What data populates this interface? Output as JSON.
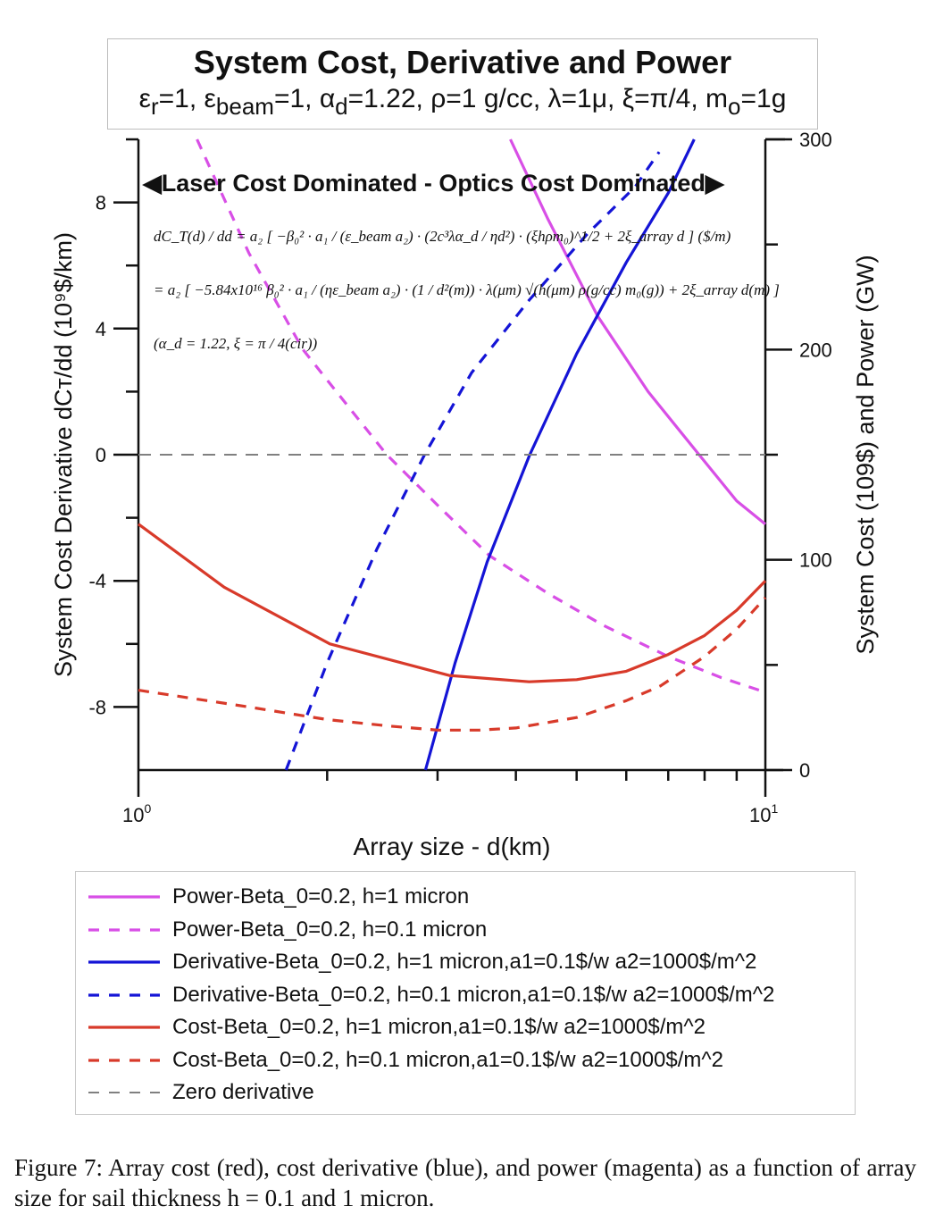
{
  "figure": {
    "title": "System Cost, Derivative and Power",
    "subtitle_parts": [
      {
        "t": "ε"
      },
      {
        "s": "r"
      },
      {
        "t": "=1, ε"
      },
      {
        "s": "beam"
      },
      {
        "t": "=1, α"
      },
      {
        "s": "d"
      },
      {
        "t": "=1.22, ρ=1 g/cc, λ=1μ, ξ=π/4, m"
      },
      {
        "s": "o"
      },
      {
        "t": "=1g"
      }
    ],
    "region_label": "◀Laser Cost Dominated - Optics Cost Dominated▶",
    "equation_line1": "dC_T(d) / dd = a₂ [ −β₀² · a₁ / (ε_beam a₂) · (2c³λα_d / ηd²) · (ξhρm₀)^1/2 + 2ξ_array d ] ($/m)",
    "equation_line2": "= a₂ [ −5.84x10¹⁶ β₀² · a₁ / (ηε_beam a₂) · (1 / d²(m)) · λ(μm) √(h(μm) ρ(g/cc) m₀(g)) + 2ξ_array d(m) ]",
    "equation_line3": "(α_d = 1.22, ξ = π / 4(cir))",
    "caption": "Figure 7:  Array cost (red), cost derivative (blue), and power (magenta) as a function of array size for sail thickness h = 0.1 and 1 micron."
  },
  "chart_data": {
    "type": "line",
    "title": "System Cost, Derivative and Power",
    "xlabel": "Array size - d(km)",
    "ylabel_left": "System Cost Derivative dC_T/dd (10^9$/km)",
    "ylabel_right": "System Cost (10^9$) and Power (GW)",
    "xscale": "log",
    "xlim": [
      1,
      10
    ],
    "x_tick_labels": [
      "10^0",
      "10^1"
    ],
    "ylim_left": [
      -10,
      10
    ],
    "y_left_ticks": [
      8,
      4,
      0,
      -4,
      -8
    ],
    "y_left_minor_ticks": [
      6,
      2,
      -2,
      -6
    ],
    "ylim_right": [
      0,
      300
    ],
    "y_right_ticks": [
      300,
      200,
      100,
      0
    ],
    "y_right_minor_ticks": [
      250,
      150,
      50
    ],
    "legend_position": "below",
    "grid": false,
    "colors": {
      "power": "#d84fe6",
      "derivative": "#1414d6",
      "cost": "#d83a2a",
      "zero": "#808080"
    },
    "series": [
      {
        "name": "Power-Beta_0=0.2, h=1 micron",
        "axis": "right",
        "color": "#d84fe6",
        "dash": false,
        "x": [
          3.92,
          4.5,
          5.4,
          6.5,
          7.84,
          9,
          10
        ],
        "y": [
          300,
          262,
          216,
          180,
          150,
          128,
          117
        ]
      },
      {
        "name": "Power-Beta_0=0.2, h=0.1 micron",
        "axis": "right",
        "color": "#d84fe6",
        "dash": true,
        "x": [
          1.24,
          1.5,
          1.83,
          2.2,
          2.49,
          3,
          3.63,
          4.5,
          5.5,
          7,
          8.5,
          10
        ],
        "y": [
          300,
          246,
          200,
          170,
          150,
          126,
          102,
          84,
          69,
          54,
          44,
          37
        ]
      },
      {
        "name": "Derivative-Beta_0=0.2, h=1 micron,a1=0.1$/w a2=1000$/m^2",
        "axis": "left",
        "color": "#1414d6",
        "dash": false,
        "x": [
          2.87,
          3.2,
          3.6,
          4.21,
          5,
          6,
          7,
          7.7
        ],
        "y": [
          -10,
          -6.6,
          -3.4,
          0,
          3.2,
          6.1,
          8.3,
          10
        ]
      },
      {
        "name": "Derivative-Beta_0=0.2, h=0.1 micron,a1=0.1$/w a2=1000$/m^2",
        "axis": "left",
        "color": "#1414d6",
        "dash": true,
        "x": [
          1.72,
          2,
          2.4,
          2.86,
          3.4,
          4.2,
          5.2,
          6.2,
          6.77
        ],
        "y": [
          -10,
          -6.6,
          -3,
          0,
          2.6,
          4.9,
          7,
          8.5,
          9.6
        ]
      },
      {
        "name": "Cost-Beta_0=0.2, h=1 micron,a1=0.1$/w a2=1000$/m^2",
        "axis": "right",
        "color": "#d83a2a",
        "dash": false,
        "x": [
          1,
          1.37,
          2.02,
          3.13,
          4.2,
          5,
          6,
          7,
          8,
          9,
          10
        ],
        "y": [
          117,
          87,
          60,
          45,
          42,
          43,
          47,
          55,
          64,
          76,
          90
        ]
      },
      {
        "name": "Cost-Beta_0=0.2, h=0.1 micron,a1=0.1$/w a2=1000$/m^2",
        "axis": "right",
        "color": "#d83a2a",
        "dash": true,
        "x": [
          1,
          1.5,
          2,
          2.5,
          3,
          3.5,
          4,
          5,
          6,
          6.8,
          8,
          9,
          10
        ],
        "y": [
          38,
          30,
          24,
          21,
          19,
          19,
          20,
          25,
          33,
          40,
          54,
          67,
          82
        ]
      },
      {
        "name": "Zero derivative",
        "axis": "left",
        "color": "#808080",
        "dash": true,
        "x": [
          1,
          10
        ],
        "y": [
          0,
          0
        ]
      }
    ]
  }
}
